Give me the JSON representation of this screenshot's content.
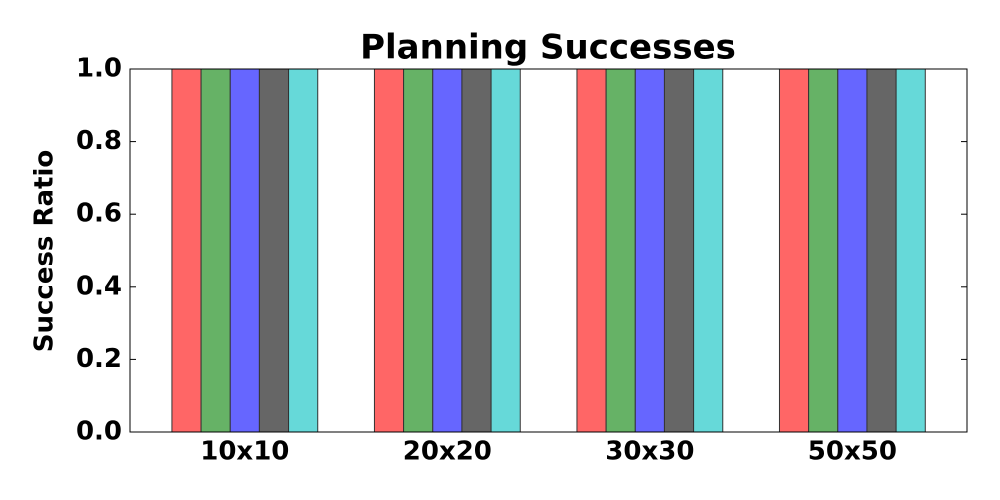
{
  "chart_data": {
    "type": "bar",
    "title": "Planning Successes",
    "y_label": "Success Ratio",
    "categories": [
      "10x10",
      "20x20",
      "30x30",
      "50x50"
    ],
    "series": [
      {
        "color": "#ff6666",
        "values": [
          1.0,
          1.0,
          1.0,
          1.0
        ]
      },
      {
        "color": "#66b266",
        "values": [
          1.0,
          1.0,
          1.0,
          1.0
        ]
      },
      {
        "color": "#6666ff",
        "values": [
          1.0,
          1.0,
          1.0,
          1.0
        ]
      },
      {
        "color": "#666666",
        "values": [
          1.0,
          1.0,
          1.0,
          1.0
        ]
      },
      {
        "color": "#66d9d9",
        "values": [
          1.0,
          1.0,
          1.0,
          1.0
        ]
      }
    ],
    "ylim": [
      0,
      1.0
    ],
    "yticks": [
      {
        "value": 0,
        "label": "0.0"
      },
      0.2,
      0.4,
      0.6,
      0.8,
      {
        "value": 1.0,
        "label": "1.0"
      }
    ]
  }
}
